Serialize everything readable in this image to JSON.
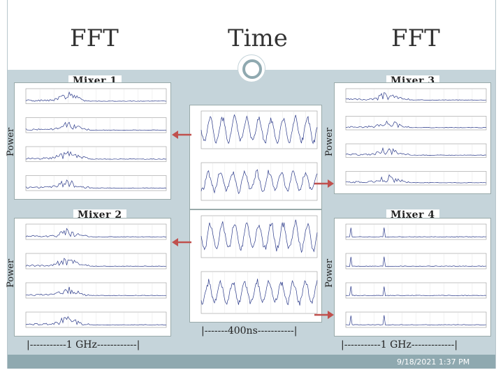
{
  "headings": {
    "fft_left": "FFT",
    "time": "Time",
    "fft_right": "FFT"
  },
  "mixers": {
    "m1": "Mixer 1",
    "m2": "Mixer 2",
    "m3": "Mixer 3",
    "m4": "Mixer 4"
  },
  "axis": {
    "power": "Power"
  },
  "scales": {
    "freq_left": "|-----------1 GHz------------|",
    "time": "|-------400ns-----------|",
    "freq_right": "|-----------1 GHz-------------|"
  },
  "footer": {
    "date": "9/18/2021 1:37 PM"
  },
  "colors": {
    "arrow": "#c0504d",
    "band": "#c5d4da",
    "footer": "#8fa9b0",
    "trace": "#2b3a8a"
  }
}
